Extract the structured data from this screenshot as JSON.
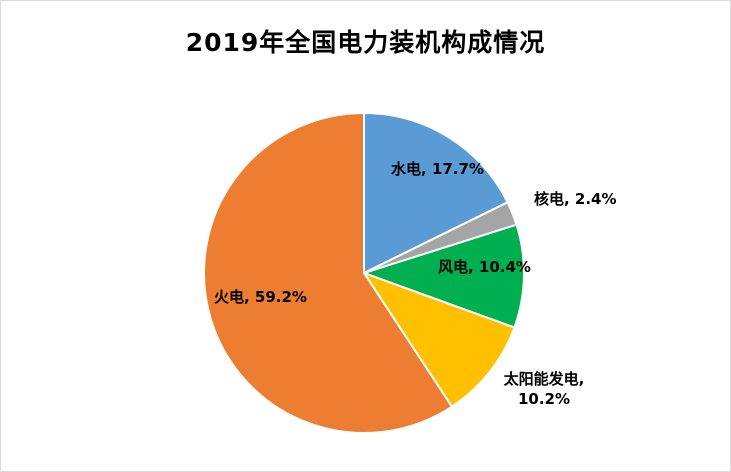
{
  "chart_data": {
    "type": "pie",
    "title": "2019年全国电力装机构成情况",
    "unit": "%",
    "start_angle_deg": 0,
    "direction": "clockwise",
    "legend": "none",
    "slice_border_color": "#FFFFFF",
    "slices": [
      {
        "id": "hydro",
        "label": "水电",
        "value": 17.7,
        "color": "#5B9BD5",
        "data_label": "水电, 17.7%",
        "label_position": "inside"
      },
      {
        "id": "nuclear",
        "label": "核电",
        "value": 2.4,
        "color": "#A5A5A5",
        "data_label": "核电, 2.4%",
        "label_position": "outside"
      },
      {
        "id": "wind",
        "label": "风电",
        "value": 10.4,
        "color": "#00B050",
        "data_label": "风电, 10.4%",
        "label_position": "inside"
      },
      {
        "id": "solar",
        "label": "太阳能发电",
        "value": 10.2,
        "color": "#FFC000",
        "data_label": "太阳能发电, 10.2%",
        "label_position": "outside"
      },
      {
        "id": "thermal",
        "label": "火电",
        "value": 59.2,
        "color": "#ED7D31",
        "data_label": "火电, 59.2%",
        "label_position": "inside"
      }
    ]
  }
}
